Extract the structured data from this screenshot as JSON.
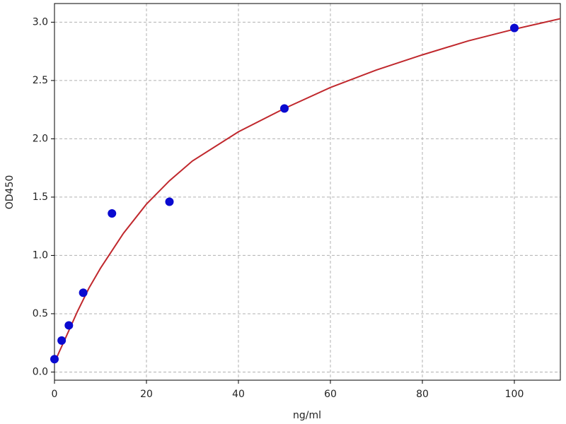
{
  "chart_data": {
    "type": "scatter",
    "x_label": "ng/ml",
    "y_label": "OD450",
    "xlim": [
      0,
      110
    ],
    "ylim": [
      -0.07,
      3.16
    ],
    "xticks": [
      0,
      20,
      40,
      60,
      80,
      100
    ],
    "yticks": [
      {
        "value": 0,
        "label": "0.0"
      },
      0.5,
      {
        "value": 1,
        "label": "1.0"
      },
      1.5,
      {
        "value": 2,
        "label": "2.0"
      },
      2.5,
      {
        "value": 3,
        "label": "3.0"
      }
    ],
    "grid": true,
    "points": {
      "color": "#0a0ad0",
      "x": [
        0,
        1.56,
        3.125,
        6.25,
        12.5,
        25,
        50,
        100
      ],
      "y": [
        0.11,
        0.27,
        0.4,
        0.68,
        1.36,
        1.46,
        2.26,
        2.95
      ]
    },
    "curve": {
      "color": "#c0282d",
      "x": [
        0,
        1,
        2.5,
        5,
        7.5,
        10,
        15,
        20,
        25,
        30,
        40,
        50,
        60,
        70,
        80,
        90,
        100,
        110
      ],
      "y": [
        0.08,
        0.17,
        0.3,
        0.52,
        0.72,
        0.89,
        1.19,
        1.44,
        1.64,
        1.81,
        2.06,
        2.26,
        2.44,
        2.59,
        2.72,
        2.84,
        2.94,
        3.03
      ]
    }
  }
}
